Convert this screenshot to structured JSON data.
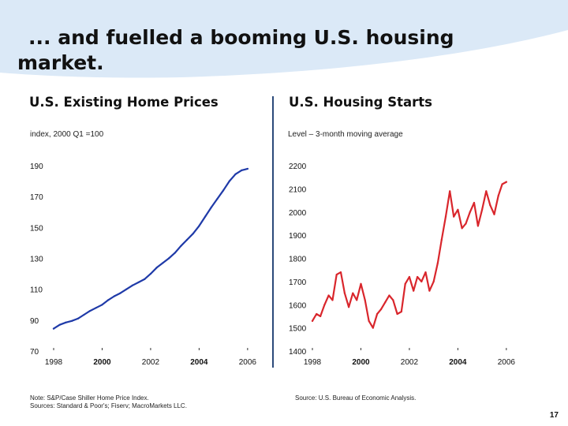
{
  "slide": {
    "title_line1": "... and fuelled a booming U.S. housing",
    "title_line2": "market.",
    "page_number": "17"
  },
  "colors": {
    "swoosh": "#dbe9f7",
    "home_price_line": "#1f3aa8",
    "housing_starts_line": "#d9262c",
    "divider": "#2b4a7a"
  },
  "left_panel": {
    "title": "U.S. Existing Home Prices",
    "subtitle": "index, 2000 Q1 =100",
    "note_line1": "Note: S&P/Case Shiller Home Price Index.",
    "note_line2": "Sources: Standard & Poor's; Fiserv; MacroMarkets LLC."
  },
  "right_panel": {
    "title": "U.S. Housing Starts",
    "subtitle": "Level – 3-month moving average",
    "note": "Source: U.S. Bureau of Economic Analysis."
  },
  "chart_data": [
    {
      "type": "line",
      "title": "U.S. Existing Home Prices",
      "ylabel": "index, 2000 Q1 =100",
      "xlabel": "",
      "xlim": [
        1998,
        2006.2
      ],
      "ylim": [
        70,
        190
      ],
      "yticks": [
        190,
        170,
        150,
        130,
        110,
        90,
        70
      ],
      "xticks": [
        1998,
        2000,
        2002,
        2004,
        2006
      ],
      "xtick_labels": [
        "1998",
        "2000",
        "2002",
        "2004",
        "2006"
      ],
      "grid": false,
      "series": [
        {
          "name": "S&P/Case Shiller Home Price Index",
          "x": [
            1998.0,
            1998.25,
            1998.5,
            1998.75,
            1999.0,
            1999.25,
            1999.5,
            1999.75,
            2000.0,
            2000.25,
            2000.5,
            2000.75,
            2001.0,
            2001.25,
            2001.5,
            2001.75,
            2002.0,
            2002.25,
            2002.5,
            2002.75,
            2003.0,
            2003.25,
            2003.5,
            2003.75,
            2004.0,
            2004.25,
            2004.5,
            2004.75,
            2005.0,
            2005.25,
            2005.5,
            2005.75,
            2006.0
          ],
          "values": [
            84.5,
            87,
            88.5,
            89.5,
            91,
            93.5,
            96,
            98,
            100,
            103,
            105.5,
            107.5,
            110,
            112.5,
            114.5,
            116.5,
            120,
            124,
            127,
            130,
            133.5,
            138,
            142,
            146,
            151,
            157,
            163,
            168.5,
            174,
            180,
            184.5,
            187,
            188
          ]
        }
      ]
    },
    {
      "type": "line",
      "title": "U.S. Housing Starts",
      "ylabel": "Level – 3-month moving average",
      "xlabel": "",
      "xlim": [
        1998,
        2006.2
      ],
      "ylim": [
        1400,
        2200
      ],
      "yticks": [
        2200,
        2100,
        2000,
        1900,
        1800,
        1700,
        1600,
        1500,
        1400
      ],
      "xticks": [
        1998,
        2000,
        2002,
        2004,
        2006
      ],
      "xtick_labels": [
        "1998",
        "2000",
        "2002",
        "2004",
        "2006"
      ],
      "grid": false,
      "series": [
        {
          "name": "Housing starts (3-month moving average)",
          "x": [
            1998.0,
            1998.17,
            1998.33,
            1998.5,
            1998.67,
            1998.83,
            1999.0,
            1999.17,
            1999.33,
            1999.5,
            1999.67,
            1999.83,
            2000.0,
            2000.17,
            2000.33,
            2000.5,
            2000.67,
            2000.83,
            2001.0,
            2001.17,
            2001.33,
            2001.5,
            2001.67,
            2001.83,
            2002.0,
            2002.17,
            2002.33,
            2002.5,
            2002.67,
            2002.83,
            2003.0,
            2003.17,
            2003.33,
            2003.5,
            2003.67,
            2003.83,
            2004.0,
            2004.17,
            2004.33,
            2004.5,
            2004.67,
            2004.83,
            2005.0,
            2005.17,
            2005.33,
            2005.5,
            2005.67,
            2005.83,
            2006.0
          ],
          "values": [
            1530,
            1560,
            1550,
            1600,
            1640,
            1620,
            1730,
            1740,
            1650,
            1590,
            1650,
            1620,
            1690,
            1620,
            1530,
            1500,
            1560,
            1580,
            1610,
            1640,
            1620,
            1560,
            1570,
            1690,
            1720,
            1660,
            1720,
            1700,
            1740,
            1660,
            1700,
            1780,
            1880,
            1980,
            2090,
            1980,
            2010,
            1930,
            1950,
            2000,
            2040,
            1940,
            2010,
            2090,
            2030,
            1990,
            2070,
            2120,
            2130
          ]
        }
      ]
    }
  ]
}
